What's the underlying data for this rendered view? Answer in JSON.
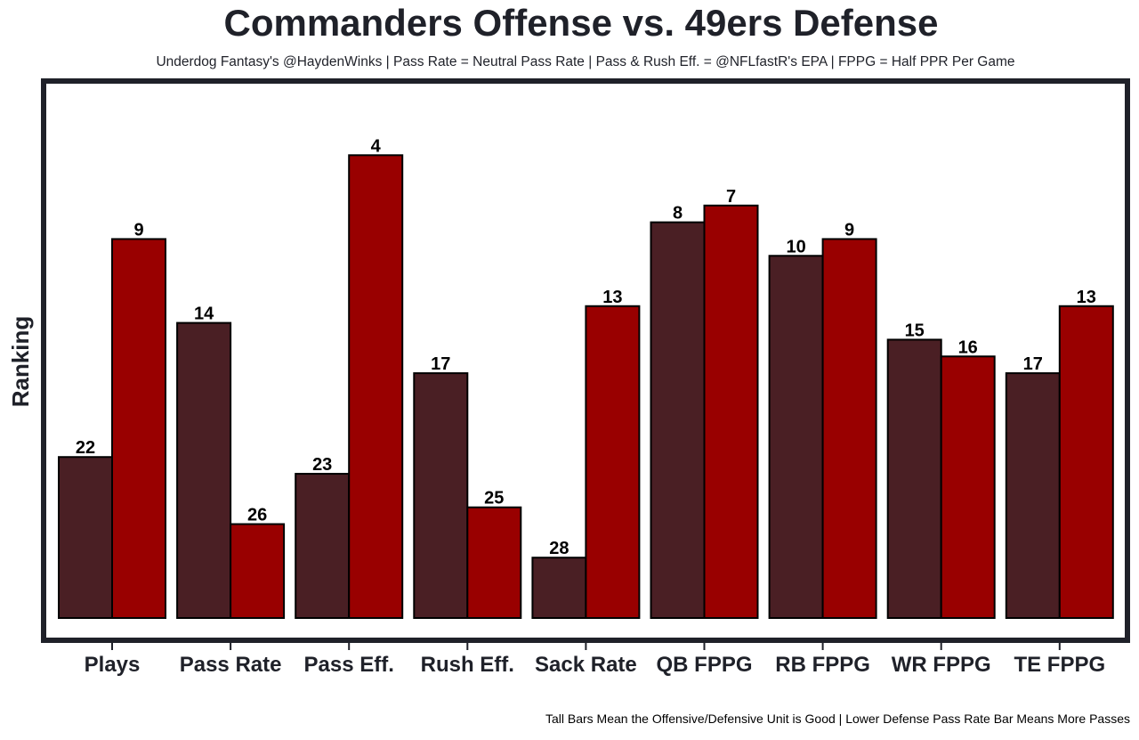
{
  "chart_data": {
    "type": "bar",
    "title": "Commanders Offense vs. 49ers Defense",
    "subtitle": "Underdog Fantasy's @HaydenWinks | Pass Rate = Neutral Pass Rate | Pass & Rush Eff. = @NFLfastR's EPA | FPPG = Half PPR Per Game",
    "ylabel": "Ranking",
    "xlabel": "",
    "caption": "Tall Bars Mean the Offensive/Defensive Unit is Good | Lower Defense Pass Rate Bar Means More Passes",
    "categories": [
      "Plays",
      "Pass Rate",
      "Pass Eff.",
      "Rush Eff.",
      "Sack Rate",
      "QB FPPG",
      "RB FPPG",
      "WR FPPG",
      "TE FPPG"
    ],
    "series": [
      {
        "values": [
          22,
          14,
          23,
          17,
          28,
          8,
          10,
          15,
          17
        ],
        "color": "#4a1f24"
      },
      {
        "values": [
          9,
          26,
          4,
          25,
          13,
          7,
          9,
          16,
          13
        ],
        "color": "#990000"
      }
    ],
    "y_scale": "inverted ranking (rank 1 = tallest)",
    "grid": false,
    "legend": "none"
  }
}
